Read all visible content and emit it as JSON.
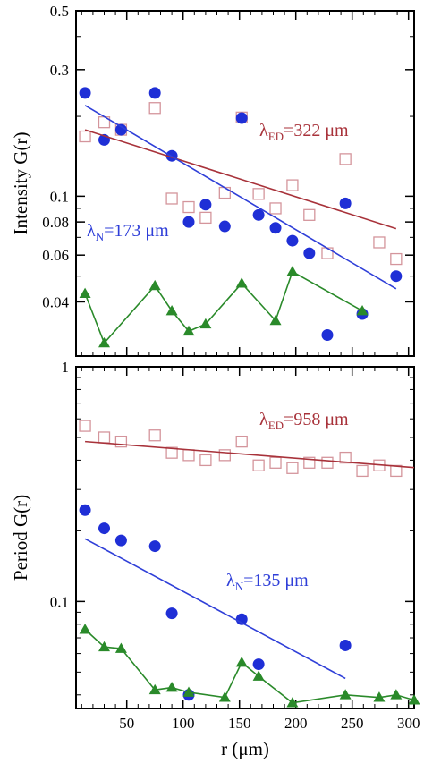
{
  "colors": {
    "filled_circle": "#1f2fd6",
    "open_square": "#d4959c",
    "triangle_line": "#2a8a2a",
    "fit_red": "#a8323a",
    "fit_blue": "#2f3fd8",
    "axis": "#000000"
  },
  "chart_data": [
    {
      "type": "scatter",
      "yscale": "log",
      "xlim": [
        5,
        305
      ],
      "ylim": [
        0.025,
        0.5
      ],
      "ylabel": "Intensity G(r)",
      "y_ticks": [
        0.04,
        0.06,
        0.08,
        0.1,
        0.3,
        0.5
      ],
      "y_tick_labels": [
        "0.04",
        "0.06",
        "0.08",
        "0.1",
        "0.3",
        "0.5"
      ],
      "annotations": [
        {
          "main": "λ",
          "sub": "ED",
          "rest": "=322 μm",
          "color": "fit_red",
          "anchor": "upper-right"
        },
        {
          "main": "λ",
          "sub": "N",
          "rest": "=173 μm",
          "color": "fit_blue",
          "anchor": "middle-left"
        }
      ],
      "series": [
        {
          "marker": "open-square",
          "color": "open_square",
          "x": [
            13,
            30,
            45,
            75,
            90,
            105,
            120,
            137,
            152,
            167,
            182,
            197,
            212,
            228,
            244,
            274,
            289
          ],
          "y": [
            0.168,
            0.19,
            0.178,
            0.215,
            0.098,
            0.091,
            0.083,
            0.103,
            0.198,
            0.102,
            0.09,
            0.11,
            0.085,
            0.061,
            0.138,
            0.067,
            0.058
          ]
        },
        {
          "marker": "filled-circle",
          "color": "filled_circle",
          "x": [
            13,
            30,
            45,
            75,
            90,
            105,
            120,
            137,
            152,
            167,
            182,
            197,
            212,
            228,
            244,
            259,
            289
          ],
          "y": [
            0.245,
            0.163,
            0.178,
            0.245,
            0.142,
            0.08,
            0.093,
            0.077,
            0.197,
            0.085,
            0.076,
            0.068,
            0.061,
            0.03,
            0.094,
            0.036,
            0.05
          ]
        },
        {
          "marker": "triangle-line",
          "color": "triangle_line",
          "x": [
            13,
            30,
            75,
            90,
            105,
            120,
            152,
            182,
            197,
            259
          ],
          "y": [
            0.043,
            0.028,
            0.046,
            0.037,
            0.031,
            0.033,
            0.047,
            0.034,
            0.052,
            0.037
          ]
        },
        {
          "marker": "fit-line",
          "color": "fit_red",
          "x": [
            13,
            289
          ],
          "y": [
            0.178,
            0.0755
          ]
        },
        {
          "marker": "fit-line",
          "color": "fit_blue",
          "x": [
            13,
            289
          ],
          "y": [
            0.22,
            0.0448
          ]
        }
      ]
    },
    {
      "type": "scatter",
      "yscale": "log",
      "xlim": [
        5,
        305
      ],
      "ylim": [
        0.035,
        1
      ],
      "xlabel": "r (μm)",
      "ylabel": "Period G(r)",
      "x_ticks": [
        50,
        100,
        150,
        200,
        250,
        300
      ],
      "x_tick_labels": [
        "50",
        "100",
        "150",
        "200",
        "250",
        "300"
      ],
      "y_ticks": [
        0.1,
        1
      ],
      "y_tick_labels": [
        "0.1",
        "1"
      ],
      "annotations": [
        {
          "main": "λ",
          "sub": "ED",
          "rest": "=958 μm",
          "color": "fit_red",
          "anchor": "upper-right"
        },
        {
          "main": "λ",
          "sub": "N",
          "rest": "=135 μm",
          "color": "fit_blue",
          "anchor": "middle-right"
        }
      ],
      "series": [
        {
          "marker": "open-square",
          "color": "open_square",
          "x": [
            13,
            30,
            45,
            75,
            90,
            105,
            120,
            137,
            152,
            167,
            182,
            197,
            212,
            228,
            244,
            259,
            274,
            289
          ],
          "y": [
            0.56,
            0.5,
            0.48,
            0.51,
            0.43,
            0.42,
            0.4,
            0.42,
            0.48,
            0.38,
            0.39,
            0.37,
            0.39,
            0.39,
            0.41,
            0.36,
            0.38,
            0.36
          ]
        },
        {
          "marker": "filled-circle",
          "color": "filled_circle",
          "x": [
            13,
            30,
            45,
            75,
            90,
            105,
            152,
            167,
            244
          ],
          "y": [
            0.245,
            0.205,
            0.182,
            0.172,
            0.089,
            0.04,
            0.084,
            0.054,
            0.065
          ]
        },
        {
          "marker": "triangle-line",
          "color": "triangle_line",
          "x": [
            13,
            30,
            45,
            75,
            90,
            105,
            137,
            152,
            167,
            197,
            244,
            274,
            289,
            305
          ],
          "y": [
            0.076,
            0.064,
            0.063,
            0.042,
            0.043,
            0.041,
            0.039,
            0.055,
            0.048,
            0.037,
            0.04,
            0.039,
            0.04,
            0.038
          ]
        },
        {
          "marker": "fit-line",
          "color": "fit_red",
          "x": [
            13,
            305
          ],
          "y": [
            0.48,
            0.372
          ]
        },
        {
          "marker": "fit-line",
          "color": "fit_blue",
          "x": [
            13,
            244
          ],
          "y": [
            0.185,
            0.047
          ]
        }
      ]
    }
  ]
}
